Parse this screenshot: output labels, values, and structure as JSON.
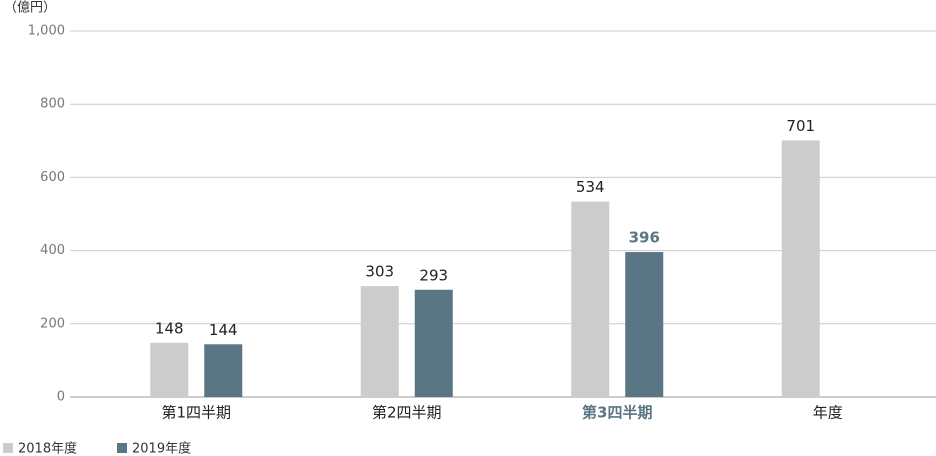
{
  "chart_data": {
    "type": "bar",
    "unit_label": "（億円）",
    "categories": [
      "第1四半期",
      "第2四半期",
      "第3四半期",
      "年度"
    ],
    "series": [
      {
        "name": "2018年度",
        "color": "#cccccc",
        "values": [
          148,
          303,
          534,
          701
        ]
      },
      {
        "name": "2019年度",
        "color": "#5a7583",
        "values": [
          144,
          293,
          396,
          null
        ]
      }
    ],
    "ylim": [
      0,
      1000
    ],
    "yticks": [
      0,
      200,
      400,
      600,
      800,
      {
        "value": 1000,
        "label": "1,000"
      }
    ],
    "grid": true,
    "highlight_index": 2,
    "legend": "bottom-left"
  }
}
